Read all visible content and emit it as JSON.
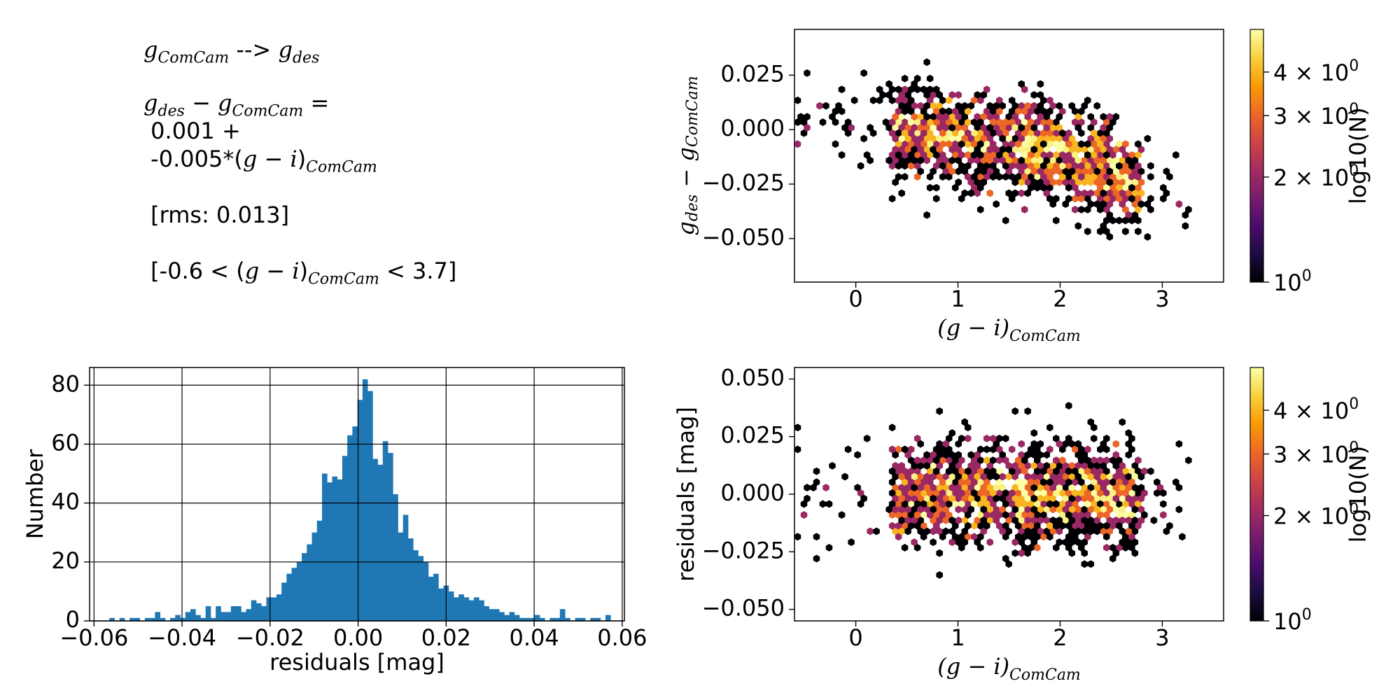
{
  "text_panel": {
    "title": {
      "from": "g",
      "from_sub": "ComCam",
      "arrow": " --> ",
      "to": "g",
      "to_sub": "des"
    },
    "lhs": {
      "a": "g",
      "a_sub": "des",
      "minus": " − ",
      "b": "g",
      "b_sub": "ComCam",
      "eq": " ="
    },
    "intercept": " 0.001 +",
    "slope_prefix": " -0.005*(",
    "slope_g": "g",
    "slope_minus": " − ",
    "slope_i": "i",
    "slope_close": ")",
    "slope_sub": "ComCam",
    "rms": " [rms: 0.013]",
    "range_prefix": " [-0.6 < (",
    "range_g": "g",
    "range_minus": " − ",
    "range_i": "i",
    "range_close": ")",
    "range_sub": "ComCam",
    "range_suffix": " < 3.7]"
  },
  "colors": {
    "bar": "#1f77b4",
    "inferno": [
      "#000004",
      "#1b0c41",
      "#4a0c6b",
      "#781c6d",
      "#a52c60",
      "#cf4446",
      "#ed6925",
      "#fb9b06",
      "#f7d13d",
      "#fcffa4"
    ]
  },
  "chart_data": [
    {
      "id": "histogram",
      "type": "bar",
      "xlabel": "residuals [mag]",
      "ylabel": "Number",
      "xlim": [
        -0.061,
        0.0605
      ],
      "ylim": [
        0,
        86
      ],
      "grid": true,
      "xticks": [
        -0.06,
        -0.04,
        -0.02,
        0.0,
        0.02,
        0.04,
        0.06
      ],
      "xtick_labels": [
        "−0.06",
        "−0.04",
        "−0.02",
        "0.00",
        "0.02",
        "0.04",
        "0.06"
      ],
      "yticks": [
        0,
        20,
        40,
        60,
        80
      ],
      "ytick_labels": [
        "0",
        "20",
        "40",
        "60",
        "80"
      ],
      "bin_start": -0.0565,
      "bin_width": 0.00115,
      "values": [
        1,
        0,
        1,
        0,
        1,
        1,
        0,
        1,
        1,
        3,
        1,
        0,
        1,
        2,
        1,
        3,
        4,
        2,
        1,
        5,
        1,
        5,
        3,
        3,
        5,
        5,
        3,
        4,
        7,
        6,
        5,
        8,
        8,
        9,
        13,
        16,
        18,
        20,
        23,
        26,
        30,
        34,
        50,
        47,
        49,
        48,
        56,
        63,
        66,
        75,
        82,
        78,
        55,
        53,
        61,
        57,
        43,
        30,
        36,
        28,
        24,
        22,
        20,
        15,
        16,
        11,
        12,
        10,
        8,
        9,
        8,
        7,
        8,
        7,
        5,
        4,
        4,
        3,
        2,
        3,
        2,
        1,
        1,
        1,
        2,
        1,
        0,
        1,
        1,
        4,
        1,
        0,
        1,
        1,
        0,
        1,
        1,
        0,
        2
      ],
      "title": ""
    },
    {
      "id": "hexbin-top",
      "type": "scatter",
      "style": "hexbin",
      "xlabel_main": "(g − i)",
      "xlabel_sub": "ComCam",
      "ylabel_a": "g",
      "ylabel_a_sub": "des",
      "ylabel_minus": " − ",
      "ylabel_b": "g",
      "ylabel_b_sub": "ComCam",
      "xlim": [
        -0.6,
        3.6
      ],
      "ylim": [
        -0.07,
        0.046
      ],
      "xticks": [
        0,
        1,
        2,
        3
      ],
      "xtick_labels": [
        "0",
        "1",
        "2",
        "3"
      ],
      "yticks": [
        0.025,
        0.0,
        -0.025,
        -0.05
      ],
      "ytick_labels": [
        "0.025",
        "0.000",
        "−0.025",
        "−0.050"
      ],
      "colorbar": {
        "label": "log10(N)",
        "ticks": [
          1,
          2,
          3,
          4
        ],
        "labels": [
          "10",
          "2 × 10",
          "3 × 10",
          "4 × 10"
        ],
        "exponent": "0",
        "max": 5.3
      },
      "trend": {
        "intercept": 0.001,
        "slope": -0.005
      }
    },
    {
      "id": "hexbin-bottom",
      "type": "scatter",
      "style": "hexbin",
      "xlabel_main": "(g − i)",
      "xlabel_sub": "ComCam",
      "ylabel": "residuals [mag]",
      "xlim": [
        -0.6,
        3.6
      ],
      "ylim": [
        -0.055,
        0.055
      ],
      "xticks": [
        0,
        1,
        2,
        3
      ],
      "xtick_labels": [
        "0",
        "1",
        "2",
        "3"
      ],
      "yticks": [
        0.05,
        0.025,
        0.0,
        -0.025,
        -0.05
      ],
      "ytick_labels": [
        "0.050",
        "0.025",
        "0.000",
        "−0.025",
        "−0.050"
      ],
      "colorbar": {
        "label": "log10(N)",
        "ticks": [
          1,
          2,
          3,
          4
        ],
        "labels": [
          "10",
          "2 × 10",
          "3 × 10",
          "4 × 10"
        ],
        "exponent": "0",
        "max": 5.3
      },
      "trend": {
        "intercept": 0.0,
        "slope": 0.0
      }
    }
  ]
}
